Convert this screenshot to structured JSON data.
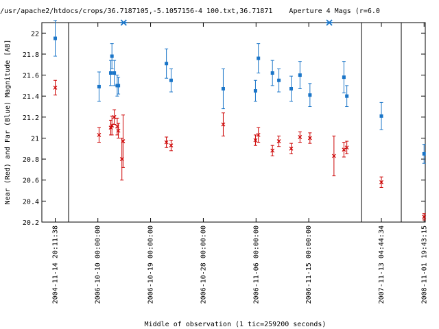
{
  "chart_data": {
    "type": "scatter",
    "title": "/usr/apache2/htdocs/crops/36.7187105,-5.1057156-4 100.txt,36.71871    Aperture 4 Mags (r=6.0",
    "xlabel": "Middle of observation (1 tic=259200 seconds)",
    "ylabel": "Near (Red) and Far (Blue) Magnitude [AB]",
    "ylim": [
      22.1,
      20.2
    ],
    "yticks": [
      20.2,
      20.4,
      20.6,
      20.8,
      21.0,
      21.2,
      21.4,
      21.6,
      21.8,
      22.0
    ],
    "ytick_labels": [
      "20.2",
      "20.4",
      "20.6",
      "20.8",
      "21",
      "21.2",
      "21.4",
      "21.6",
      "21.8",
      "22"
    ],
    "grid": false,
    "legend": "none",
    "panels": [
      {
        "name": "2004",
        "xrange": [
          -1,
          1
        ],
        "ticks": [
          {
            "x": 0,
            "label": "2004-11-14 20:11:38"
          }
        ]
      },
      {
        "name": "2006",
        "xrange": [
          -5,
          45
        ],
        "ticks": [
          {
            "x": 0,
            "label": "2006-10-10 00:00:00"
          },
          {
            "x": 9,
            "label": "2006-10-19 00:00:00"
          },
          {
            "x": 18,
            "label": "2006-10-28 00:00:00"
          },
          {
            "x": 27,
            "label": "2006-11-06 00:00:00"
          },
          {
            "x": 36,
            "label": "2006-11-15 00:00:00"
          }
        ]
      },
      {
        "name": "2007",
        "xrange": [
          -3,
          3
        ],
        "ticks": [
          {
            "x": 0,
            "label": "2007-11-13 04:44:34"
          }
        ]
      },
      {
        "name": "2008",
        "xrange": [
          -3,
          3
        ],
        "ticks": [
          {
            "x": 2.7,
            "label": "2008-11-01 19:43:15"
          }
        ]
      }
    ],
    "series": [
      {
        "name": "Near (Red)",
        "color": "#cc0000",
        "marker": "x",
        "points": [
          {
            "p": 0,
            "x": 0,
            "y": 21.48,
            "err": 0.07
          },
          {
            "p": 1,
            "x": 0.2,
            "y": 21.03,
            "err": 0.07
          },
          {
            "p": 1,
            "x": 2.2,
            "y": 21.1,
            "err": 0.07
          },
          {
            "p": 1,
            "x": 2.4,
            "y": 21.12,
            "err": 0.09
          },
          {
            "p": 1,
            "x": 2.8,
            "y": 21.2,
            "err": 0.07
          },
          {
            "p": 1,
            "x": 3.3,
            "y": 21.11,
            "err": 0.08
          },
          {
            "p": 1,
            "x": 3.5,
            "y": 21.07,
            "err": 0.07
          },
          {
            "p": 1,
            "x": 4.1,
            "y": 20.8,
            "err": 0.2
          },
          {
            "p": 1,
            "x": 4.3,
            "y": 20.97,
            "err": 0.25
          },
          {
            "p": 1,
            "x": 11.7,
            "y": 20.96,
            "err": 0.05
          },
          {
            "p": 1,
            "x": 12.5,
            "y": 20.93,
            "err": 0.05
          },
          {
            "p": 1,
            "x": 21.4,
            "y": 21.13,
            "err": 0.11
          },
          {
            "p": 1,
            "x": 26.9,
            "y": 20.98,
            "err": 0.05
          },
          {
            "p": 1,
            "x": 27.4,
            "y": 21.03,
            "err": 0.07
          },
          {
            "p": 1,
            "x": 29.8,
            "y": 20.88,
            "err": 0.05
          },
          {
            "p": 1,
            "x": 30.9,
            "y": 20.97,
            "err": 0.05
          },
          {
            "p": 1,
            "x": 33.0,
            "y": 20.9,
            "err": 0.05
          },
          {
            "p": 1,
            "x": 34.5,
            "y": 21.01,
            "err": 0.05
          },
          {
            "p": 1,
            "x": 36.2,
            "y": 21.0,
            "err": 0.05
          },
          {
            "p": 1,
            "x": 40.3,
            "y": 20.83,
            "err": 0.19
          },
          {
            "p": 1,
            "x": 42.0,
            "y": 20.89,
            "err": 0.07
          },
          {
            "p": 1,
            "x": 42.5,
            "y": 20.91,
            "err": 0.06
          },
          {
            "p": 2,
            "x": 0,
            "y": 20.58,
            "err": 0.05
          },
          {
            "p": 3,
            "x": 2.7,
            "y": 20.25,
            "err": 0.03
          }
        ]
      },
      {
        "name": "Far (Blue)",
        "color": "#1a75c8",
        "marker": "square",
        "points": [
          {
            "p": 0,
            "x": 0,
            "y": 21.95,
            "err": 0.17
          },
          {
            "p": 1,
            "x": 0.2,
            "y": 21.49,
            "err": 0.14
          },
          {
            "p": 1,
            "x": 2.2,
            "y": 21.62,
            "err": 0.12
          },
          {
            "p": 1,
            "x": 2.4,
            "y": 21.78,
            "err": 0.12
          },
          {
            "p": 1,
            "x": 2.8,
            "y": 21.62,
            "err": 0.12
          },
          {
            "p": 1,
            "x": 3.3,
            "y": 21.5,
            "err": 0.1
          },
          {
            "p": 1,
            "x": 3.5,
            "y": 21.5,
            "err": 0.08
          },
          {
            "p": 1,
            "x": 11.7,
            "y": 21.71,
            "err": 0.14
          },
          {
            "p": 1,
            "x": 12.5,
            "y": 21.55,
            "err": 0.11
          },
          {
            "p": 1,
            "x": 21.4,
            "y": 21.47,
            "err": 0.19
          },
          {
            "p": 1,
            "x": 26.9,
            "y": 21.45,
            "err": 0.1
          },
          {
            "p": 1,
            "x": 27.4,
            "y": 21.76,
            "err": 0.14
          },
          {
            "p": 1,
            "x": 29.8,
            "y": 21.62,
            "err": 0.12
          },
          {
            "p": 1,
            "x": 30.9,
            "y": 21.55,
            "err": 0.11
          },
          {
            "p": 1,
            "x": 33.0,
            "y": 21.47,
            "err": 0.12
          },
          {
            "p": 1,
            "x": 34.5,
            "y": 21.6,
            "err": 0.13
          },
          {
            "p": 1,
            "x": 36.2,
            "y": 21.41,
            "err": 0.11
          },
          {
            "p": 1,
            "x": 42.0,
            "y": 21.58,
            "err": 0.15
          },
          {
            "p": 1,
            "x": 42.5,
            "y": 21.4,
            "err": 0.1
          },
          {
            "p": 2,
            "x": 0,
            "y": 21.21,
            "err": 0.13
          },
          {
            "p": 3,
            "x": 2.7,
            "y": 20.85,
            "err": 0.09
          }
        ]
      },
      {
        "name": "",
        "color": "#1a75c8",
        "marker": "asterisk",
        "points": [
          {
            "p": 1,
            "x": 4.4,
            "y": 22.1
          },
          {
            "p": 1,
            "x": 39.5,
            "y": 22.1
          }
        ]
      }
    ]
  }
}
